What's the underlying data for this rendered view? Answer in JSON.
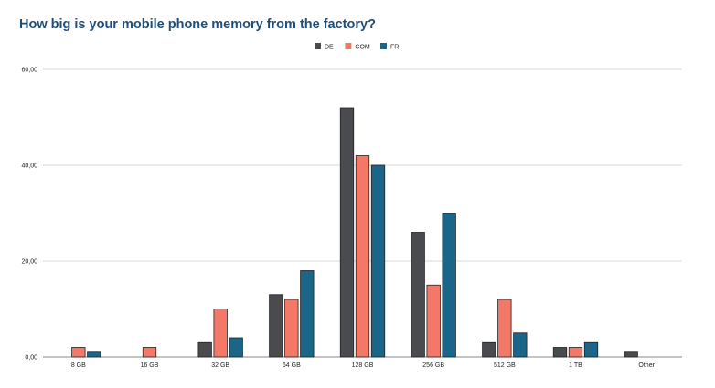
{
  "chart_data": {
    "type": "bar",
    "title": "How big is your mobile phone memory from the factory?",
    "categories": [
      "8 GB",
      "16 GB",
      "32 GB",
      "64 GB",
      "128 GB",
      "256 GB",
      "512 GB",
      "1 TB",
      "Other"
    ],
    "series": [
      {
        "name": "DE",
        "color": "#4a4b4f",
        "values": [
          0,
          0,
          3,
          13,
          52,
          26,
          3,
          2,
          1
        ]
      },
      {
        "name": "COM",
        "color": "#f47868",
        "values": [
          2,
          2,
          10,
          12,
          42,
          15,
          12,
          2,
          0
        ]
      },
      {
        "name": "FR",
        "color": "#1b6589",
        "values": [
          1,
          0,
          4,
          18,
          40,
          30,
          5,
          3,
          0
        ]
      }
    ],
    "y_ticks": [
      "0,00",
      "20,00",
      "40,00",
      "60,00"
    ],
    "ylim": [
      0,
      60
    ],
    "grid": true,
    "legend_position": "top-center"
  }
}
